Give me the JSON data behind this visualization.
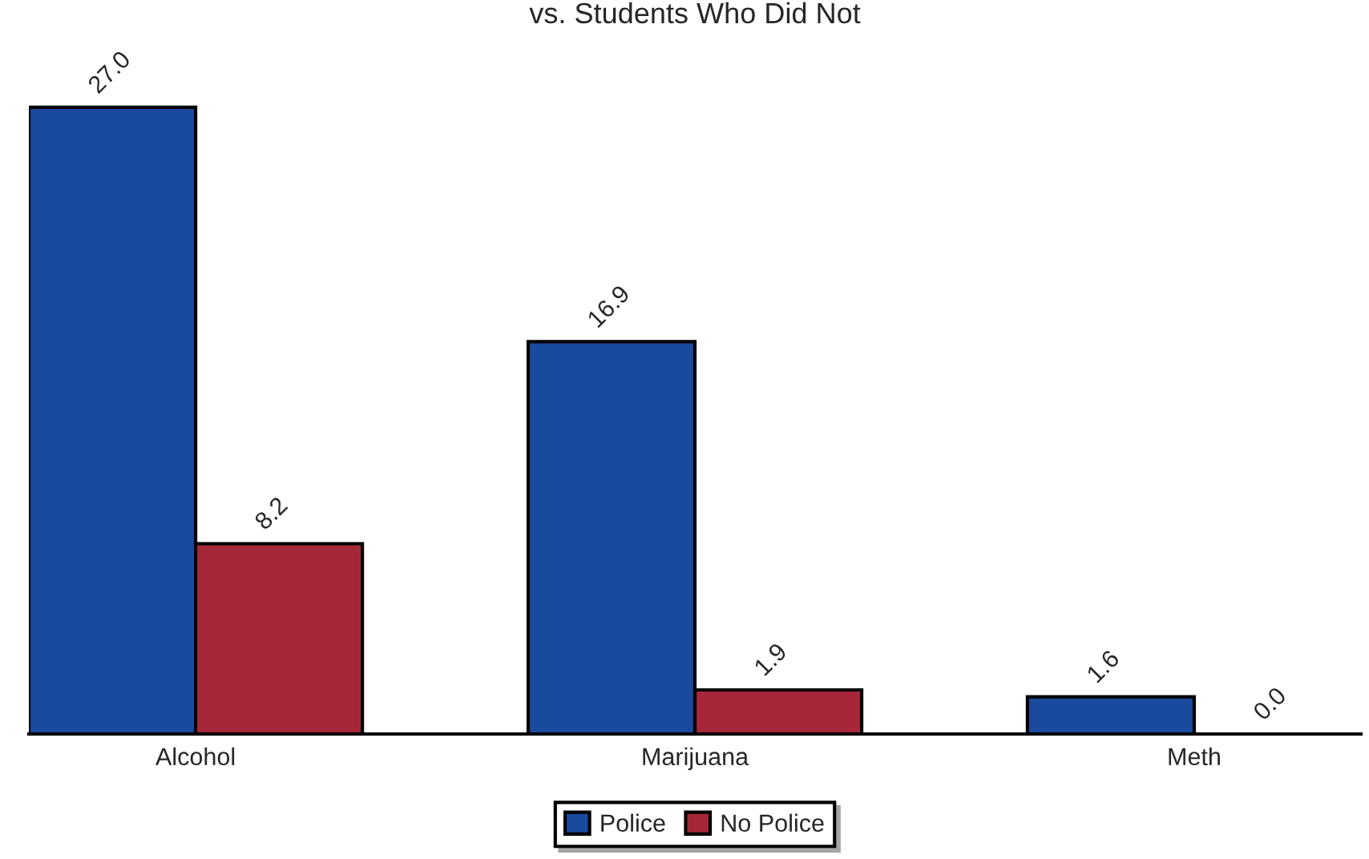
{
  "chart_data": {
    "type": "bar",
    "title": "vs. Students Who Did Not",
    "categories": [
      "Alcohol",
      "Marijuana",
      "Meth"
    ],
    "series": [
      {
        "name": "Police",
        "color": "#1a4a9e",
        "values": [
          27.0,
          16.9,
          1.6
        ],
        "value_labels": [
          "27.0",
          "16.9",
          "1.6"
        ]
      },
      {
        "name": "No Police",
        "color": "#a6273a",
        "values": [
          8.2,
          1.9,
          0.0
        ],
        "value_labels": [
          "8.2",
          "1.9",
          "0.0"
        ]
      }
    ],
    "legend": "bottom",
    "grid": false
  }
}
